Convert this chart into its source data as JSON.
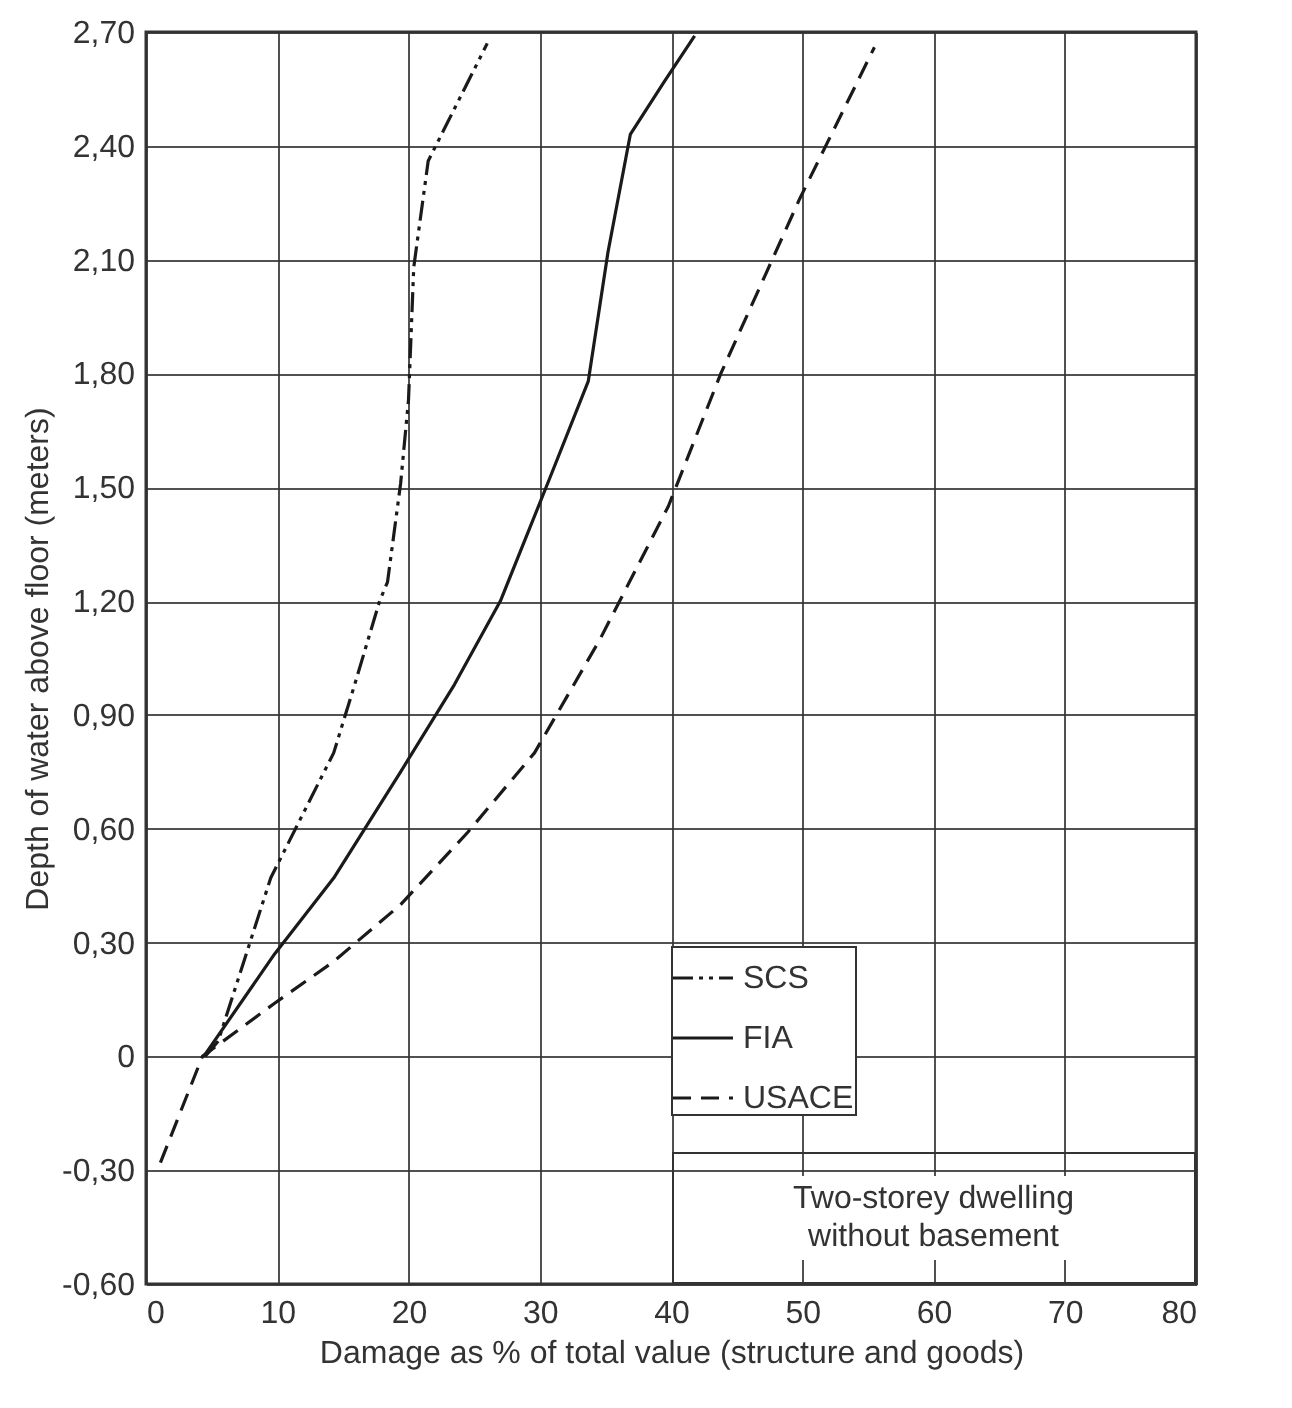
{
  "chart_data": {
    "type": "line",
    "xlabel": "Damage as % of total value (structure and goods)",
    "ylabel": "Depth of water above floor (meters)",
    "xlim": [
      0,
      80
    ],
    "xticks": [
      0,
      10,
      20,
      30,
      40,
      50,
      60,
      70,
      80
    ],
    "ylim": [
      -0.6,
      2.7
    ],
    "yticks": [
      {
        "value": -0.6,
        "label": "-0,60"
      },
      {
        "value": -0.3,
        "label": "-0,30"
      },
      0,
      {
        "value": 0.3,
        "label": "0,30"
      },
      {
        "value": 0.6,
        "label": "0,60"
      },
      {
        "value": 0.9,
        "label": "0,90"
      },
      {
        "value": 1.2,
        "label": "1,20"
      },
      {
        "value": 1.5,
        "label": "1,50"
      },
      {
        "value": 1.8,
        "label": "1,80"
      },
      {
        "value": 2.1,
        "label": "2,10"
      },
      {
        "value": 2.4,
        "label": "2,40"
      },
      {
        "value": 2.7,
        "label": "2,70"
      }
    ],
    "grid": true,
    "legend": "bottom right",
    "annotations": [
      "Two-storey dwelling\nwithout basement"
    ],
    "series": [
      {
        "name": "SCS",
        "color": "#1a1a1a",
        "line_style": "dotted",
        "x": [
          4.5,
          5.5,
          9.5,
          14.3,
          15.9,
          17.8,
          18.4,
          19.4,
          20,
          20.4,
          21.5,
          26
        ],
        "values": [
          0,
          0.04,
          0.47,
          0.8,
          0.98,
          1.2,
          1.25,
          1.51,
          1.73,
          2.08,
          2.36,
          2.67
        ]
      },
      {
        "name": "FIA",
        "color": "#1a1a1a",
        "line_style": "solid",
        "x": [
          4.4,
          9.8,
          14.3,
          19.4,
          23.5,
          27,
          30.6,
          33.7,
          35.2,
          36.9,
          39.5,
          41.8
        ],
        "values": [
          0,
          0.27,
          0.47,
          0.75,
          0.98,
          1.2,
          1.51,
          1.78,
          2.12,
          2.43,
          2.57,
          2.69
        ]
      },
      {
        "name": "USACE",
        "color": "#1a1a1a",
        "line_style": "dashed",
        "x": [
          1.1,
          4.3,
          9.8,
          14.3,
          19.4,
          24.5,
          29.6,
          34.6,
          39.8,
          43.8,
          49.8,
          55.5
        ],
        "values": [
          -0.28,
          0,
          0.14,
          0.25,
          0.4,
          0.59,
          0.8,
          1.1,
          1.45,
          1.8,
          2.26,
          2.66
        ]
      }
    ]
  }
}
